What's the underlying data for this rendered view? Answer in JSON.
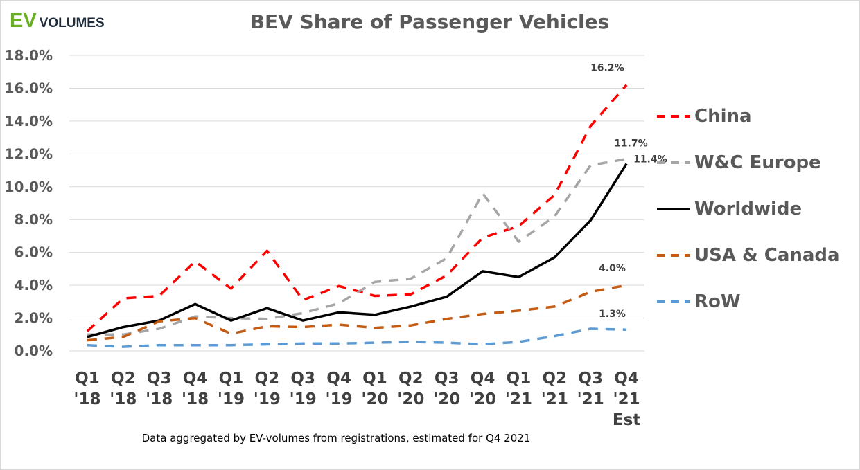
{
  "logo": {
    "ev": "EV",
    "volumes": "VOLUMES"
  },
  "footnote": "Data aggregated by EV-volumes from registrations, estimated for Q4 2021",
  "chart_data": {
    "type": "line",
    "title": "BEV Share of Passenger Vehicles",
    "xlabel": "",
    "ylabel": "",
    "ylim": [
      0,
      18
    ],
    "yticks": [
      "0.0%",
      "2.0%",
      "4.0%",
      "6.0%",
      "8.0%",
      "10.0%",
      "12.0%",
      "14.0%",
      "16.0%",
      "18.0%"
    ],
    "categories": [
      [
        "Q1",
        "'18"
      ],
      [
        "Q2",
        "'18"
      ],
      [
        "Q3",
        "'18"
      ],
      [
        "Q4",
        "'18"
      ],
      [
        "Q1",
        "'19"
      ],
      [
        "Q2",
        "'19"
      ],
      [
        "Q3",
        "'19"
      ],
      [
        "Q4",
        "'19"
      ],
      [
        "Q1",
        "'20"
      ],
      [
        "Q2",
        "'20"
      ],
      [
        "Q3",
        "'20"
      ],
      [
        "Q4",
        "'20"
      ],
      [
        "Q1",
        "'21"
      ],
      [
        "Q2",
        "'21"
      ],
      [
        "Q3",
        "'21"
      ],
      [
        "Q4",
        "'21",
        "Est"
      ]
    ],
    "grid": true,
    "legend_position": "right",
    "series": [
      {
        "name": "China",
        "color": "#ff0000",
        "dash": "dashed",
        "end_label": "16.2%",
        "values": [
          1.2,
          3.2,
          3.35,
          5.45,
          3.8,
          6.1,
          3.1,
          3.95,
          3.35,
          3.45,
          4.6,
          6.9,
          7.6,
          9.5,
          13.7,
          16.2
        ]
      },
      {
        "name": "W&C Europe",
        "color": "#a6a6a6",
        "dash": "dashed",
        "end_label": "11.7%",
        "values": [
          1.0,
          1.0,
          1.35,
          2.1,
          2.0,
          1.95,
          2.3,
          2.9,
          4.2,
          4.4,
          5.65,
          9.6,
          6.65,
          8.2,
          11.3,
          11.7
        ]
      },
      {
        "name": "Worldwide",
        "color": "#000000",
        "dash": "solid",
        "end_label": "11.4%",
        "values": [
          0.85,
          1.45,
          1.85,
          2.85,
          1.85,
          2.6,
          1.85,
          2.35,
          2.2,
          2.7,
          3.3,
          4.85,
          4.5,
          5.7,
          7.95,
          11.4
        ]
      },
      {
        "name": "USA & Canada",
        "color": "#c55a11",
        "dash": "dashed",
        "end_label": "4.0%",
        "values": [
          0.65,
          0.85,
          1.8,
          2.0,
          1.05,
          1.5,
          1.45,
          1.6,
          1.4,
          1.55,
          1.95,
          2.25,
          2.45,
          2.7,
          3.6,
          4.0
        ]
      },
      {
        "name": "RoW",
        "color": "#5b9bd5",
        "dash": "dashed",
        "end_label": "1.3%",
        "values": [
          0.35,
          0.25,
          0.35,
          0.35,
          0.35,
          0.4,
          0.45,
          0.45,
          0.5,
          0.55,
          0.5,
          0.4,
          0.55,
          0.9,
          1.35,
          1.3
        ]
      }
    ]
  }
}
